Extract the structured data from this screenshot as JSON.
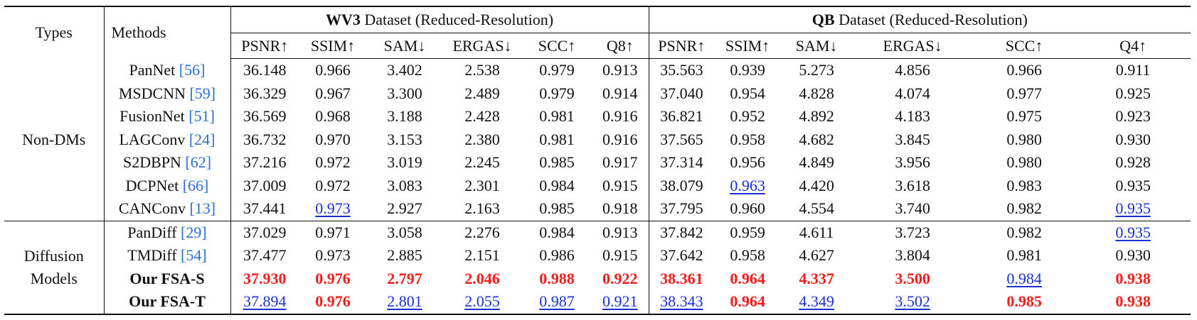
{
  "table": {
    "header": {
      "types": "Types",
      "methods": "Methods",
      "group1": {
        "bold": "WV3",
        "rest": " Dataset (Reduced-Resolution)"
      },
      "group2": {
        "bold": "QB",
        "rest": " Dataset (Reduced-Resolution)"
      },
      "metrics1": [
        "PSNR↑",
        "SSIM↑",
        "SAM↓",
        "ERGAS↓",
        "SCC↑",
        "Q8↑"
      ],
      "metrics2": [
        "PSNR↑",
        "SSIM↑",
        "SAM↓",
        "ERGAS↓",
        "SCC↑",
        "Q4↑"
      ]
    },
    "sections": [
      {
        "type": "Non-DMs",
        "rows": [
          {
            "method": "PanNet",
            "ref": "[56]",
            "bold": false,
            "values": [
              "36.148",
              "0.966",
              "3.402",
              "2.538",
              "0.979",
              "0.913",
              "35.563",
              "0.939",
              "5.273",
              "4.856",
              "0.966",
              "0.911"
            ],
            "styles": [
              "",
              "",
              "",
              "",
              "",
              "",
              "",
              "",
              "",
              "",
              "",
              ""
            ]
          },
          {
            "method": "MSDCNN",
            "ref": "[59]",
            "bold": false,
            "values": [
              "36.329",
              "0.967",
              "3.300",
              "2.489",
              "0.979",
              "0.914",
              "37.040",
              "0.954",
              "4.828",
              "4.074",
              "0.977",
              "0.925"
            ],
            "styles": [
              "",
              "",
              "",
              "",
              "",
              "",
              "",
              "",
              "",
              "",
              "",
              ""
            ]
          },
          {
            "method": "FusionNet",
            "ref": "[51]",
            "bold": false,
            "values": [
              "36.569",
              "0.968",
              "3.188",
              "2.428",
              "0.981",
              "0.916",
              "36.821",
              "0.952",
              "4.892",
              "4.183",
              "0.975",
              "0.923"
            ],
            "styles": [
              "",
              "",
              "",
              "",
              "",
              "",
              "",
              "",
              "",
              "",
              "",
              ""
            ]
          },
          {
            "method": "LAGConv",
            "ref": "[24]",
            "bold": false,
            "values": [
              "36.732",
              "0.970",
              "3.153",
              "2.380",
              "0.981",
              "0.916",
              "37.565",
              "0.958",
              "4.682",
              "3.845",
              "0.980",
              "0.930"
            ],
            "styles": [
              "",
              "",
              "",
              "",
              "",
              "",
              "",
              "",
              "",
              "",
              "",
              ""
            ]
          },
          {
            "method": "S2DBPN",
            "ref": "[62]",
            "bold": false,
            "values": [
              "37.216",
              "0.972",
              "3.019",
              "2.245",
              "0.985",
              "0.917",
              "37.314",
              "0.956",
              "4.849",
              "3.956",
              "0.980",
              "0.928"
            ],
            "styles": [
              "",
              "",
              "",
              "",
              "",
              "",
              "",
              "",
              "",
              "",
              "",
              ""
            ]
          },
          {
            "method": "DCPNet",
            "ref": "[66]",
            "bold": false,
            "values": [
              "37.009",
              "0.972",
              "3.083",
              "2.301",
              "0.984",
              "0.915",
              "38.079",
              "0.963",
              "4.420",
              "3.618",
              "0.983",
              "0.935"
            ],
            "styles": [
              "",
              "",
              "",
              "",
              "",
              "",
              "",
              "second",
              "",
              "",
              "",
              ""
            ]
          },
          {
            "method": "CANConv",
            "ref": "[13]",
            "bold": false,
            "values": [
              "37.441",
              "0.973",
              "2.927",
              "2.163",
              "0.985",
              "0.918",
              "37.795",
              "0.960",
              "4.554",
              "3.740",
              "0.982",
              "0.935"
            ],
            "styles": [
              "",
              "second",
              "",
              "",
              "",
              "",
              "",
              "",
              "",
              "",
              "",
              "second"
            ]
          }
        ]
      },
      {
        "type": "Diffusion Models",
        "rows": [
          {
            "method": "PanDiff",
            "ref": "[29]",
            "bold": false,
            "values": [
              "37.029",
              "0.971",
              "3.058",
              "2.276",
              "0.984",
              "0.913",
              "37.842",
              "0.959",
              "4.611",
              "3.723",
              "0.982",
              "0.935"
            ],
            "styles": [
              "",
              "",
              "",
              "",
              "",
              "",
              "",
              "",
              "",
              "",
              "",
              "second"
            ]
          },
          {
            "method": "TMDiff",
            "ref": "[54]",
            "bold": false,
            "values": [
              "37.477",
              "0.973",
              "2.885",
              "2.151",
              "0.986",
              "0.915",
              "37.642",
              "0.958",
              "4.627",
              "3.804",
              "0.981",
              "0.930"
            ],
            "styles": [
              "",
              "",
              "",
              "",
              "",
              "",
              "",
              "",
              "",
              "",
              "",
              ""
            ]
          },
          {
            "method": "Our FSA-S",
            "ref": "",
            "bold": true,
            "values": [
              "37.930",
              "0.976",
              "2.797",
              "2.046",
              "0.988",
              "0.922",
              "38.361",
              "0.964",
              "4.337",
              "3.500",
              "0.984",
              "0.938"
            ],
            "styles": [
              "best",
              "best",
              "best",
              "best",
              "best",
              "best",
              "best",
              "best",
              "best",
              "best",
              "second",
              "best"
            ]
          },
          {
            "method": "Our FSA-T",
            "ref": "",
            "bold": true,
            "values": [
              "37.894",
              "0.976",
              "2.801",
              "2.055",
              "0.987",
              "0.921",
              "38.343",
              "0.964",
              "4.349",
              "3.502",
              "0.985",
              "0.938"
            ],
            "styles": [
              "second",
              "best",
              "second",
              "second",
              "second",
              "second",
              "second",
              "best",
              "second",
              "second",
              "best",
              "best"
            ]
          }
        ]
      }
    ]
  },
  "colors": {
    "best": "#ff1a1a",
    "second": "#1a2fd6",
    "ref": "#2a6fd6"
  }
}
